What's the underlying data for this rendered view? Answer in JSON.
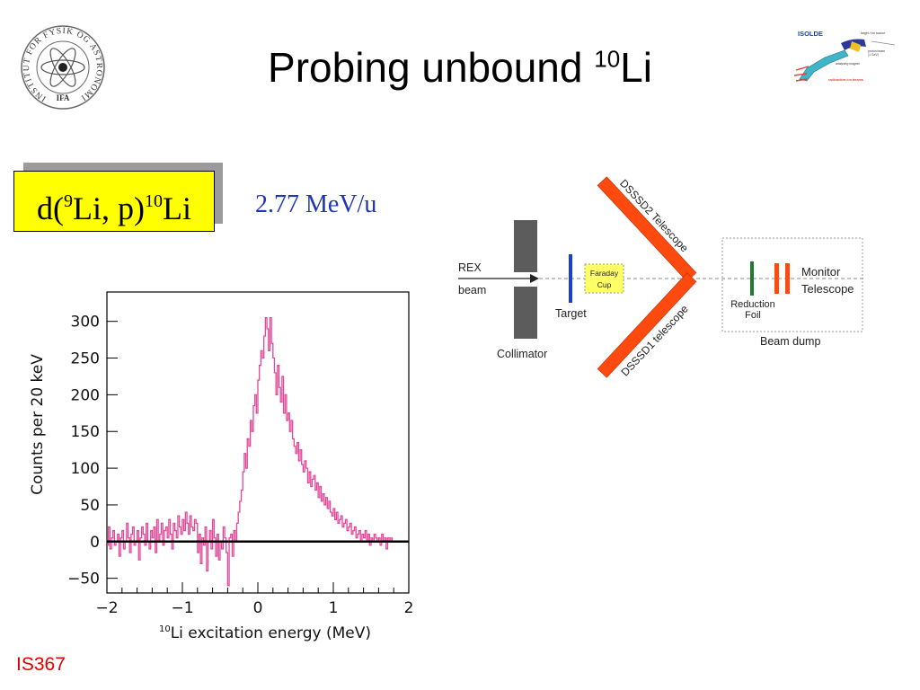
{
  "slide": {
    "title_main": "Probing unbound ",
    "title_sup": "10",
    "title_end": "Li",
    "reaction": {
      "d": "d(",
      "sup1": "9",
      "mid": "Li, p)",
      "sup2": "10",
      "end": "Li"
    },
    "energy": "2.77 MeV/u",
    "experiment_tag": "IS367"
  },
  "logo": {
    "ring_text": "INSTITUT FOR FYSIK OG ASTRONOMI",
    "bottom_text": "IFA"
  },
  "isolde_diagram": {
    "title": "ISOLDE",
    "label_target": "target / ion source",
    "label_proton": "proton beam",
    "label_proton2": "(1 GeV)",
    "label_magnet": "analysing magnet",
    "label_beams": "radioactive ion beams"
  },
  "setup": {
    "beam_label_1": "REX",
    "beam_label_2": "beam",
    "target": "Target",
    "collimator": "Collimator",
    "faraday_1": "Faraday",
    "faraday_2": "Cup",
    "dsssd2": "DSSSD2 Telescope",
    "dsssd1": "DSSSD1 telescope",
    "reduction_1": "Reduction",
    "reduction_2": "Foil",
    "monitor_1": "Monitor",
    "monitor_2": "Telescope",
    "beam_dump": "Beam dump",
    "colors": {
      "detector": "#ff4a0f",
      "target": "#1a3fd6",
      "foil": "#1f7a2e",
      "faraday": "#ffff66"
    }
  },
  "chart_data": {
    "type": "line",
    "style": "histogram",
    "title": "",
    "xlabel": "Li excitation energy (MeV)",
    "xlabel_sup": "10",
    "ylabel": "Counts per 20 keV",
    "xlim": [
      -2,
      2
    ],
    "ylim": [
      -70,
      340
    ],
    "xticks": [
      -2,
      -1,
      0,
      1,
      2
    ],
    "xtick_labels": [
      "−2",
      "−1",
      "0",
      "1",
      "2"
    ],
    "yticks": [
      -50,
      0,
      50,
      100,
      150,
      200,
      250,
      300
    ],
    "ytick_labels": [
      "−50",
      "0",
      "50",
      "100",
      "150",
      "200",
      "250",
      "300"
    ],
    "bin_width": 0.02,
    "zero_line": true,
    "line_color": "#e0489a",
    "values": [
      -5,
      20,
      -10,
      5,
      15,
      -5,
      0,
      10,
      -20,
      5,
      15,
      -10,
      0,
      25,
      5,
      -15,
      10,
      20,
      -5,
      0,
      15,
      -25,
      5,
      20,
      10,
      -5,
      25,
      0,
      -10,
      15,
      5,
      20,
      -15,
      30,
      0,
      10,
      25,
      -5,
      15,
      20,
      5,
      30,
      10,
      -10,
      25,
      15,
      5,
      35,
      20,
      10,
      30,
      15,
      40,
      25,
      10,
      35,
      20,
      15,
      30,
      25,
      -15,
      10,
      -30,
      5,
      -5,
      20,
      -40,
      0,
      15,
      -10,
      30,
      5,
      -20,
      10,
      -25,
      0,
      -10,
      20,
      5,
      -15,
      -60,
      5,
      10,
      -20,
      15,
      0,
      25,
      40,
      55,
      70,
      95,
      120,
      100,
      140,
      130,
      165,
      150,
      185,
      200,
      175,
      220,
      240,
      260,
      250,
      280,
      305,
      290,
      260,
      305,
      270,
      250,
      230,
      200,
      240,
      210,
      190,
      225,
      175,
      200,
      165,
      175,
      150,
      165,
      140,
      130,
      120,
      135,
      110,
      125,
      105,
      95,
      110,
      100,
      80,
      95,
      75,
      85,
      90,
      70,
      80,
      60,
      75,
      55,
      65,
      50,
      60,
      45,
      55,
      40,
      35,
      45,
      30,
      40,
      25,
      30,
      35,
      20,
      25,
      30,
      15,
      20,
      25,
      10,
      15,
      20,
      5,
      10,
      15,
      0,
      10,
      5,
      15,
      0,
      10,
      -5,
      5,
      0,
      10,
      5,
      0,
      5,
      -5,
      10,
      0,
      5,
      -10,
      5,
      0,
      5,
      0
    ]
  }
}
